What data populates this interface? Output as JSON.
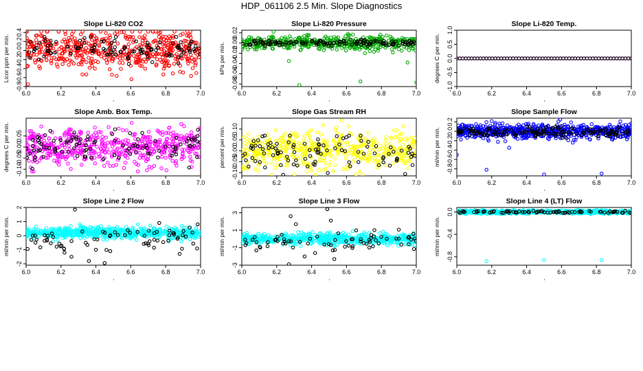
{
  "title": "HDP_061106  2.5 Min. Slope Diagnostics",
  "chart_data": [
    {
      "id": "co2",
      "type": "scatter",
      "title": "Slope Li-820 CO2",
      "xlabel": "",
      "ylabel": "Licor ppm per min.",
      "xlim": [
        6.0,
        7.0
      ],
      "ylim": [
        -0.8,
        0.45
      ],
      "xticks": [
        6.0,
        6.2,
        6.4,
        6.6,
        6.8,
        7.0
      ],
      "yticks": [
        -0.8,
        -0.6,
        -0.4,
        -0.2,
        0.0,
        0.2,
        0.4
      ],
      "series": [
        {
          "color": "#ff0000",
          "n": 520,
          "center": 0.0,
          "spread": 0.22,
          "min": -0.75,
          "max": 0.42
        },
        {
          "color": "#000000",
          "n": 110,
          "center": 0.03,
          "spread": 0.12,
          "min": -0.3,
          "max": 0.3
        }
      ]
    },
    {
      "id": "pressure",
      "type": "scatter",
      "title": "Slope Li-820 Pressure",
      "xlabel": "",
      "ylabel": "kPa per min.",
      "xlim": [
        6.0,
        7.0
      ],
      "ylim": [
        -0.085,
        0.025
      ],
      "xticks": [
        6.0,
        6.2,
        6.4,
        6.6,
        6.8,
        7.0
      ],
      "yticks": [
        -0.08,
        -0.06,
        -0.04,
        -0.02,
        0.0,
        0.02
      ],
      "series": [
        {
          "color": "#00aa00",
          "n": 460,
          "center": 0.0,
          "spread": 0.007,
          "min": -0.02,
          "max": 0.022
        },
        {
          "color": "#000000",
          "n": 130,
          "center": 0.0,
          "spread": 0.003,
          "min": -0.012,
          "max": 0.01
        }
      ],
      "outliers": [
        {
          "x": 6.33,
          "y": -0.082,
          "color": "#00aa00"
        },
        {
          "x": 6.68,
          "y": -0.075,
          "color": "#00aa00"
        },
        {
          "x": 7.0,
          "y": -0.077,
          "color": "#00aa00"
        },
        {
          "x": 6.27,
          "y": -0.035,
          "color": "#00aa00"
        },
        {
          "x": 6.95,
          "y": -0.038,
          "color": "#00aa00"
        }
      ]
    },
    {
      "id": "temp",
      "type": "scatter",
      "title": "Slope Li-820 Temp.",
      "xlabel": "",
      "ylabel": "degrees C per min.",
      "xlim": [
        6.0,
        7.0
      ],
      "ylim": [
        -1.0,
        1.0
      ],
      "xticks": [
        6.0,
        6.2,
        6.4,
        6.6,
        6.8,
        7.0
      ],
      "yticks": [
        -1.0,
        -0.5,
        0.0,
        0.5,
        1.0
      ],
      "series": [
        {
          "color": "#ff00ff",
          "n": 60,
          "center": 0.0,
          "spread": 0.0,
          "min": 0,
          "max": 0,
          "line": true
        },
        {
          "color": "#000000",
          "n": 60,
          "center": 0.0,
          "spread": 0.0,
          "min": 0,
          "max": 0,
          "line": true
        }
      ]
    },
    {
      "id": "ambbox",
      "type": "scatter",
      "title": "Slope Amb. Box Temp.",
      "xlabel": "",
      "ylabel": "degrees C per min.",
      "xlim": [
        6.0,
        7.0
      ],
      "ylim": [
        -0.13,
        0.13
      ],
      "xticks": [
        6.0,
        6.2,
        6.4,
        6.6,
        6.8,
        7.0
      ],
      "yticks": [
        -0.1,
        -0.05,
        0.0,
        0.05
      ],
      "series": [
        {
          "color": "#ff00ff",
          "n": 520,
          "center": 0.0,
          "spread": 0.04,
          "min": -0.11,
          "max": 0.11
        },
        {
          "color": "#000000",
          "n": 100,
          "center": 0.0,
          "spread": 0.04,
          "min": -0.11,
          "max": 0.08
        }
      ]
    },
    {
      "id": "rh",
      "type": "scatter",
      "title": "Slope Gas Stream RH",
      "xlabel": "",
      "ylabel": "percent per min.",
      "xlim": [
        6.0,
        7.0
      ],
      "ylim": [
        -0.115,
        0.15
      ],
      "xticks": [
        6.0,
        6.2,
        6.4,
        6.6,
        6.8,
        7.0
      ],
      "yticks": [
        -0.1,
        -0.05,
        0.0,
        0.05,
        0.1
      ],
      "series": [
        {
          "color": "#ffff00",
          "n": 480,
          "center": 0.0,
          "spread": 0.045,
          "min": -0.11,
          "max": 0.14
        },
        {
          "color": "#000000",
          "n": 100,
          "center": 0.0,
          "spread": 0.04,
          "min": -0.11,
          "max": 0.07
        }
      ]
    },
    {
      "id": "sampleflow",
      "type": "scatter",
      "title": "Slope Sample Flow",
      "xlabel": "",
      "ylabel": "ml/min per min.",
      "xlim": [
        6.0,
        7.0
      ],
      "ylim": [
        -0.95,
        0.28
      ],
      "xticks": [
        6.0,
        6.2,
        6.4,
        6.6,
        6.8,
        7.0
      ],
      "yticks": [
        -0.8,
        -0.6,
        -0.4,
        -0.2,
        0.0,
        0.2
      ],
      "series": [
        {
          "color": "#0000ff",
          "n": 620,
          "center": 0.0,
          "spread": 0.08,
          "min": -0.25,
          "max": 0.25
        },
        {
          "color": "#000000",
          "n": 160,
          "center": -0.02,
          "spread": 0.05,
          "min": -0.2,
          "max": 0.12
        }
      ],
      "outliers": [
        {
          "x": 6.0,
          "y": -0.5,
          "color": "#0000ff"
        },
        {
          "x": 6.17,
          "y": -0.82,
          "color": "#0000ff"
        },
        {
          "x": 6.5,
          "y": -0.92,
          "color": "#0000ff"
        },
        {
          "x": 6.83,
          "y": -0.9,
          "color": "#0000ff"
        },
        {
          "x": 6.3,
          "y": -0.35,
          "color": "#0000ff"
        }
      ]
    },
    {
      "id": "line2",
      "type": "scatter",
      "title": "Slope Line 2 Flow",
      "xlabel": "",
      "ylabel": "ml/min per min.",
      "xlim": [
        6.0,
        7.0
      ],
      "ylim": [
        -2.1,
        2.0
      ],
      "xticks": [
        6.0,
        6.2,
        6.4,
        6.6,
        6.8,
        7.0
      ],
      "yticks": [
        -2,
        -1,
        0,
        1,
        2
      ],
      "series": [
        {
          "color": "#00ffff",
          "n": 620,
          "center": 0.2,
          "spread": 0.2,
          "min": -0.4,
          "max": 0.8
        },
        {
          "color": "#000000",
          "n": 70,
          "center": -0.2,
          "spread": 0.5,
          "min": -1.1,
          "max": 0.9
        }
      ],
      "outliers": [
        {
          "x": 6.28,
          "y": 1.85,
          "color": "#000000"
        },
        {
          "x": 6.26,
          "y": -1.5,
          "color": "#000000"
        },
        {
          "x": 6.36,
          "y": -1.8,
          "color": "#000000"
        },
        {
          "x": 6.45,
          "y": -1.95,
          "color": "#000000"
        },
        {
          "x": 6.22,
          "y": -1.2,
          "color": "#000000"
        },
        {
          "x": 6.88,
          "y": -1.3,
          "color": "#000000"
        },
        {
          "x": 6.4,
          "y": -1.0,
          "color": "#000000"
        }
      ]
    },
    {
      "id": "line3",
      "type": "scatter",
      "title": "Slope Line 3 Flow",
      "xlabel": "",
      "ylabel": "ml/min per min.",
      "xlim": [
        6.0,
        7.0
      ],
      "ylim": [
        -3.0,
        3.6
      ],
      "xticks": [
        6.0,
        6.2,
        6.4,
        6.6,
        6.8,
        7.0
      ],
      "yticks": [
        -3,
        -1,
        1,
        3
      ],
      "series": [
        {
          "color": "#00ffff",
          "n": 620,
          "center": 0.0,
          "spread": 0.3,
          "min": -0.9,
          "max": 0.9
        },
        {
          "color": "#000000",
          "n": 70,
          "center": -0.3,
          "spread": 0.5,
          "min": -1.3,
          "max": 1.2
        }
      ],
      "outliers": [
        {
          "x": 6.28,
          "y": 2.6,
          "color": "#000000"
        },
        {
          "x": 6.31,
          "y": 1.7,
          "color": "#000000"
        },
        {
          "x": 6.49,
          "y": 3.4,
          "color": "#000000"
        },
        {
          "x": 6.51,
          "y": 2.1,
          "color": "#000000"
        },
        {
          "x": 6.27,
          "y": -2.9,
          "color": "#000000"
        },
        {
          "x": 6.53,
          "y": -2.3,
          "color": "#000000"
        },
        {
          "x": 6.36,
          "y": -2.0,
          "color": "#000000"
        },
        {
          "x": 6.42,
          "y": -1.6,
          "color": "#000000"
        }
      ]
    },
    {
      "id": "line4",
      "type": "scatter",
      "title": "Slope Line 4 (LT) Flow",
      "xlabel": "",
      "ylabel": "ml/min per min.",
      "xlim": [
        6.0,
        7.0
      ],
      "ylim": [
        -0.95,
        0.08
      ],
      "xticks": [
        6.0,
        6.2,
        6.4,
        6.6,
        6.8,
        7.0
      ],
      "yticks": [
        -0.8,
        -0.4,
        0.0
      ],
      "series": [
        {
          "color": "#00ffff",
          "n": 620,
          "center": 0.0,
          "spread": 0.015,
          "min": -0.04,
          "max": 0.05
        },
        {
          "color": "#000000",
          "n": 80,
          "center": 0.0,
          "spread": 0.01,
          "min": -0.03,
          "max": 0.03
        }
      ],
      "outliers": [
        {
          "x": 6.17,
          "y": -0.88,
          "color": "#00ffff"
        },
        {
          "x": 6.5,
          "y": -0.86,
          "color": "#00ffff"
        },
        {
          "x": 6.83,
          "y": -0.86,
          "color": "#00ffff"
        }
      ]
    }
  ]
}
